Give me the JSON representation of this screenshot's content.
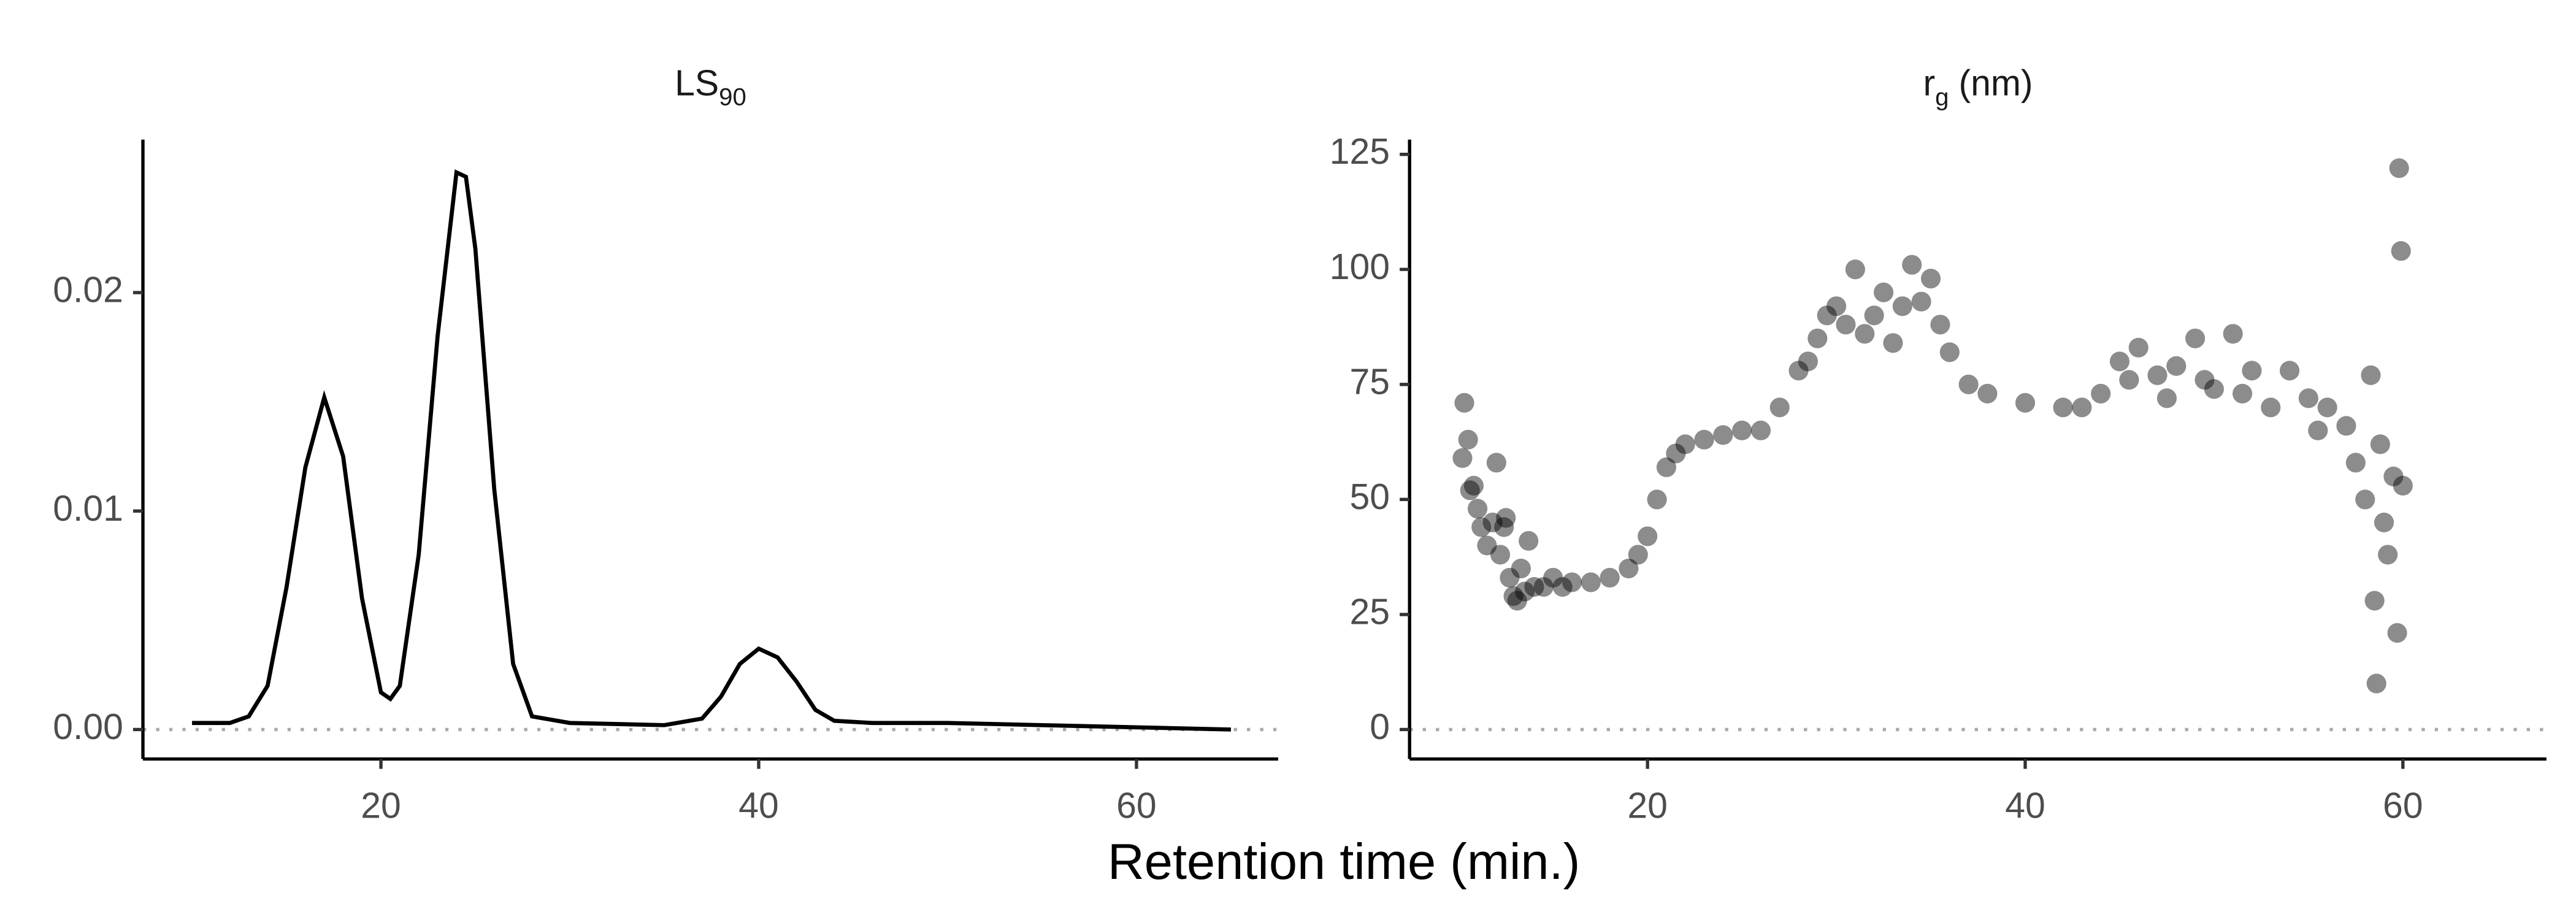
{
  "xlabel": "Retention time (min.)",
  "chart_data": [
    {
      "type": "line",
      "title": "LS",
      "title_subscript": "90",
      "color": "#000000",
      "x": [
        10,
        12,
        13,
        14,
        15,
        16,
        17,
        18,
        19,
        20,
        20.5,
        21,
        22,
        23,
        24,
        24.5,
        25,
        26,
        27,
        28,
        30,
        35,
        37,
        38,
        39,
        40,
        41,
        42,
        43,
        44,
        46,
        50,
        55,
        60,
        65
      ],
      "values": [
        0.0003,
        0.0003,
        0.0006,
        0.002,
        0.0065,
        0.012,
        0.0152,
        0.0125,
        0.006,
        0.0017,
        0.0014,
        0.002,
        0.008,
        0.018,
        0.0255,
        0.0253,
        0.022,
        0.011,
        0.003,
        0.0006,
        0.0003,
        0.0002,
        0.0005,
        0.0015,
        0.003,
        0.0037,
        0.0033,
        0.0022,
        0.0009,
        0.0004,
        0.0003,
        0.0003,
        0.0002,
        0.0001,
        0
      ],
      "xlim": [
        7.4,
        67.5
      ],
      "xticks": [
        20,
        40,
        60
      ],
      "ylim": [
        -0.00135,
        0.027
      ],
      "yticks": [
        {
          "value": 0,
          "label": "0.00"
        },
        0.01,
        0.02
      ],
      "hline": 0
    },
    {
      "type": "scatter",
      "title": "r",
      "title_subscript": "g",
      "title_suffix": "(nm)",
      "color": "#000000",
      "x": [
        10.2,
        10.3,
        10.5,
        10.6,
        10.8,
        11,
        11.2,
        11.5,
        11.8,
        12,
        12.2,
        12.4,
        12.5,
        12.7,
        12.9,
        13.1,
        13.3,
        13.5,
        13.7,
        14,
        14.5,
        15,
        15.5,
        16,
        17,
        18,
        19,
        19.5,
        20,
        20.5,
        21,
        21.5,
        22,
        23,
        24,
        25,
        26,
        27,
        28,
        28.5,
        29,
        29.5,
        30,
        30.5,
        31,
        31.5,
        32,
        32.5,
        33,
        33.5,
        34,
        34.5,
        35,
        35.5,
        36,
        37,
        38,
        40,
        42,
        43,
        44,
        45,
        45.5,
        46,
        47,
        47.5,
        48,
        49,
        49.5,
        50,
        51,
        51.5,
        52,
        53,
        54,
        55,
        55.5,
        56,
        57,
        57.5,
        58,
        58.3,
        58.5,
        58.6,
        58.8,
        59,
        59.2,
        59.5,
        59.7,
        59.8,
        59.9,
        60
      ],
      "values": [
        59,
        71,
        63,
        52,
        53,
        48,
        44,
        40,
        45,
        58,
        38,
        44,
        46,
        33,
        29,
        28,
        35,
        30,
        41,
        31,
        31,
        33,
        31,
        32,
        32,
        33,
        35,
        38,
        42,
        50,
        57,
        60,
        62,
        63,
        64,
        65,
        65,
        70,
        78,
        80,
        85,
        90,
        92,
        88,
        100,
        86,
        90,
        95,
        84,
        92,
        101,
        93,
        98,
        88,
        82,
        75,
        73,
        71,
        70,
        70,
        73,
        80,
        76,
        83,
        77,
        72,
        79,
        85,
        76,
        74,
        86,
        73,
        78,
        70,
        78,
        72,
        65,
        70,
        66,
        58,
        50,
        77,
        28,
        10,
        62,
        45,
        38,
        55,
        21,
        122,
        104,
        53
      ],
      "xlim": [
        7.4,
        67.6
      ],
      "xticks": [
        20,
        40,
        60
      ],
      "ylim": [
        -6.4,
        128.2
      ],
      "yticks": [
        0,
        25,
        50,
        75,
        100,
        125
      ],
      "hline": 0
    }
  ]
}
